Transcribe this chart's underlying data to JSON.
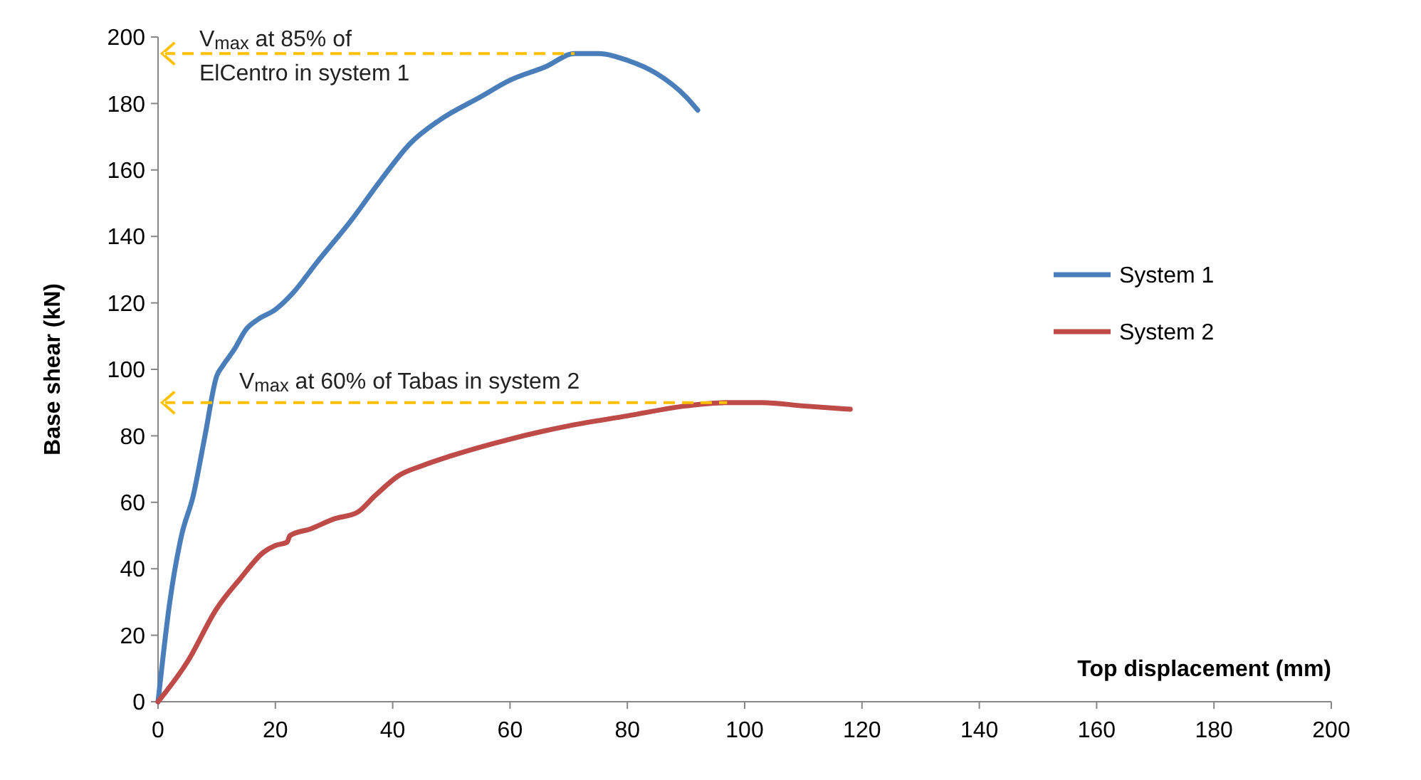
{
  "chart_data": {
    "type": "line",
    "xlabel": "Top displacement (mm)",
    "ylabel": "Base shear (kN)",
    "xlim": [
      0,
      200
    ],
    "xticks": [
      0,
      20,
      40,
      60,
      80,
      100,
      120,
      140,
      160,
      180,
      200
    ],
    "ylim": [
      0,
      200
    ],
    "yticks": [
      0,
      20,
      40,
      60,
      80,
      100,
      120,
      140,
      160,
      180,
      200
    ],
    "grid": false,
    "legend": "right",
    "marker": "none",
    "line_style": "solid",
    "series": [
      {
        "name": "System 1",
        "color": "#4a7ebb",
        "x": [
          0,
          2,
          4,
          6,
          8,
          10,
          11,
          13,
          15,
          17,
          20,
          23,
          27,
          33,
          38,
          43,
          48,
          55,
          60,
          66,
          71,
          75,
          80,
          85,
          90,
          92
        ],
        "values": [
          0,
          30,
          50,
          62,
          80,
          98,
          101,
          106,
          112,
          115,
          118,
          123,
          132,
          145,
          157,
          168,
          175,
          182,
          187,
          191,
          195,
          195,
          193,
          189,
          182,
          178
        ]
      },
      {
        "name": "System 2",
        "color": "#be4b48",
        "x": [
          0,
          5,
          10,
          14,
          18,
          20,
          22,
          22.5,
          26,
          30,
          34,
          37,
          41,
          45,
          50,
          60,
          70,
          80,
          90,
          97,
          103,
          110,
          118
        ],
        "values": [
          0,
          12,
          28,
          37,
          45,
          47,
          48,
          50,
          52,
          55,
          57,
          62,
          68,
          71,
          74,
          79,
          83,
          86,
          89,
          90,
          90,
          89,
          88
        ]
      }
    ],
    "annotations": [
      "V$_{max}$ at 85% of\nElCentro in system 1",
      "V$_{max}$ at 60% of Tabas in system 2"
    ]
  }
}
